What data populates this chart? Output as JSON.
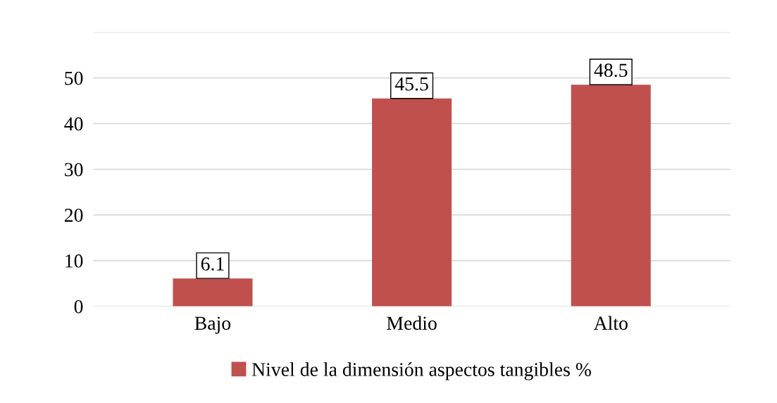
{
  "chart_data": {
    "type": "bar",
    "categories": [
      "Bajo",
      "Medio",
      "Alto"
    ],
    "series": [
      {
        "name": "Nivel de la dimensión aspectos tangibles %",
        "color": "#c0504d",
        "values": [
          6.1,
          45.5,
          48.5
        ]
      }
    ],
    "ylim": [
      0,
      60
    ],
    "yticks": [
      0,
      10,
      20,
      30,
      40,
      50,
      {
        "value": 60,
        "label": null
      }
    ],
    "grid": "y",
    "legend": "bottom",
    "data_labels": true
  }
}
